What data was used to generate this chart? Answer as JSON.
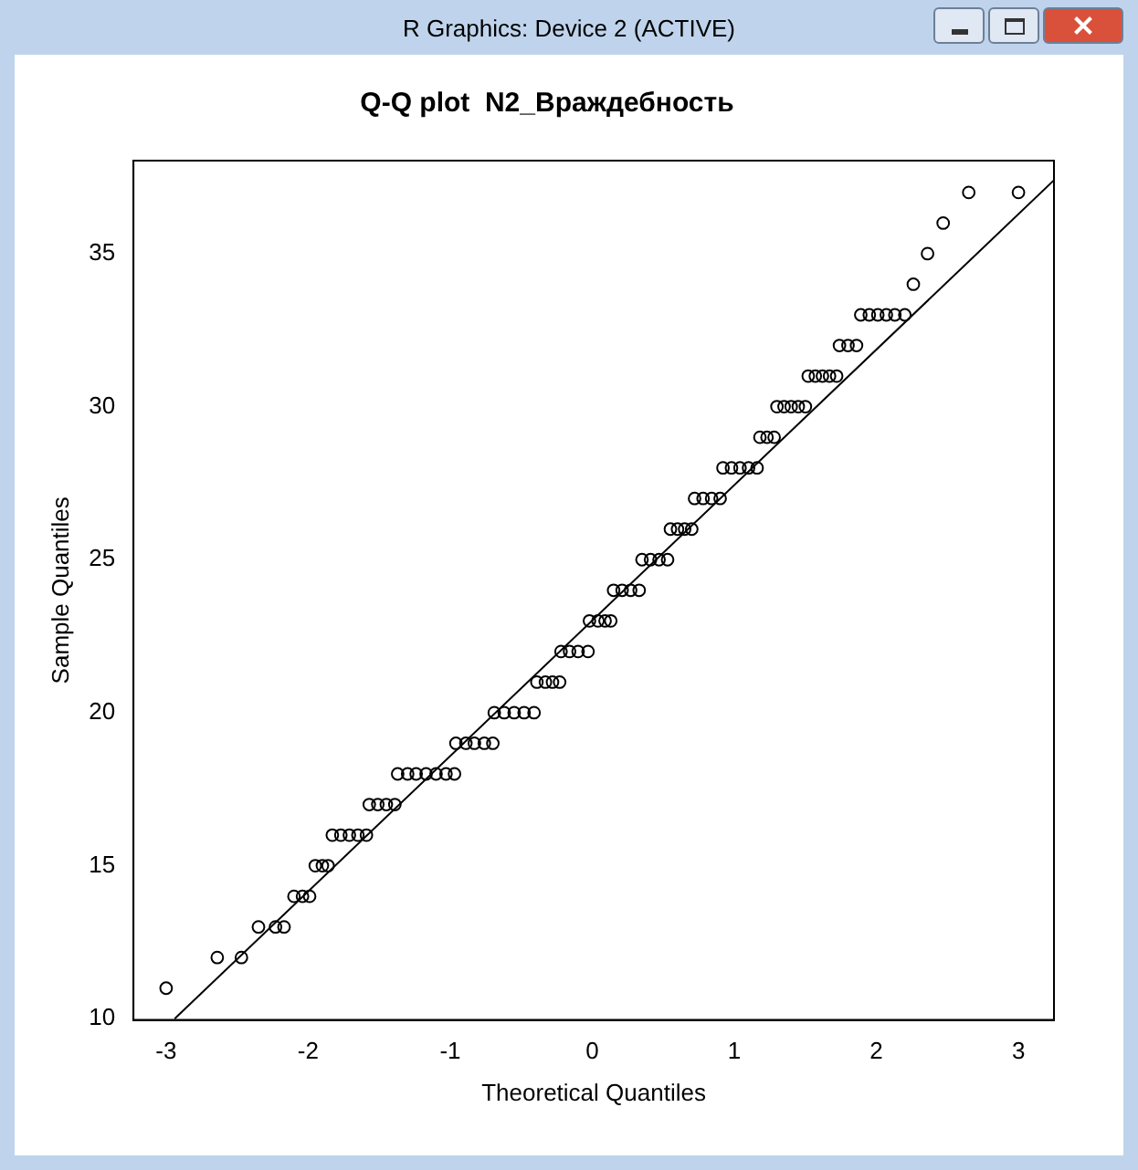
{
  "chart_data": {
    "type": "scatter",
    "title": "Q-Q plot  N2_Враждебность",
    "xlabel": "Theoretical Quantiles",
    "ylabel": "Sample Quantiles",
    "annotations": [
      "R Graphics: Device 2 (ACTIVE)"
    ],
    "xlim": [
      -3.23,
      3.25
    ],
    "ylim": [
      9.96,
      38.04
    ],
    "xticks": [
      -3,
      -2,
      -1,
      0,
      1,
      2,
      3
    ],
    "yticks": [
      10,
      15,
      20,
      25,
      30,
      35
    ],
    "grid": false,
    "legend": false,
    "marker": "circle",
    "series": [
      {
        "color": "#000000",
        "x": [
          -3.0,
          -2.64,
          -2.47,
          -2.35,
          -2.23,
          -2.17,
          -2.1,
          -2.04,
          -1.99,
          -1.95,
          -1.9,
          -1.86,
          -1.83,
          -1.77,
          -1.71,
          -1.65,
          -1.59,
          -1.57,
          -1.51,
          -1.45,
          -1.39,
          -1.37,
          -1.3,
          -1.24,
          -1.17,
          -1.1,
          -1.03,
          -0.97,
          -0.96,
          -0.89,
          -0.83,
          -0.76,
          -0.7,
          -0.69,
          -0.62,
          -0.55,
          -0.48,
          -0.41,
          -0.39,
          -0.33,
          -0.28,
          -0.23,
          -0.22,
          -0.16,
          -0.1,
          -0.03,
          -0.02,
          0.04,
          0.09,
          0.13,
          0.15,
          0.21,
          0.27,
          0.33,
          0.35,
          0.41,
          0.47,
          0.53,
          0.55,
          0.6,
          0.65,
          0.7,
          0.72,
          0.78,
          0.84,
          0.9,
          0.92,
          0.98,
          1.04,
          1.1,
          1.16,
          1.18,
          1.23,
          1.28,
          1.3,
          1.35,
          1.4,
          1.45,
          1.5,
          1.52,
          1.57,
          1.62,
          1.67,
          1.72,
          1.74,
          1.8,
          1.86,
          1.89,
          1.95,
          2.01,
          2.07,
          2.13,
          2.2,
          2.26,
          2.36,
          2.47,
          2.65,
          3.0
        ],
        "values": [
          11,
          12,
          12,
          13,
          13,
          13,
          14,
          14,
          14,
          15,
          15,
          15,
          16,
          16,
          16,
          16,
          16,
          17,
          17,
          17,
          17,
          18,
          18,
          18,
          18,
          18,
          18,
          18,
          19,
          19,
          19,
          19,
          19,
          20,
          20,
          20,
          20,
          20,
          21,
          21,
          21,
          21,
          22,
          22,
          22,
          22,
          23,
          23,
          23,
          23,
          24,
          24,
          24,
          24,
          25,
          25,
          25,
          25,
          26,
          26,
          26,
          26,
          27,
          27,
          27,
          27,
          28,
          28,
          28,
          28,
          28,
          29,
          29,
          29,
          30,
          30,
          30,
          30,
          30,
          31,
          31,
          31,
          31,
          31,
          32,
          32,
          32,
          33,
          33,
          33,
          33,
          33,
          33,
          34,
          35,
          36,
          37,
          37
        ]
      },
      {
        "type": "line",
        "color": "#000000",
        "marker": "none",
        "x": [
          -2.94,
          3.25
        ],
        "values": [
          10,
          37.4
        ]
      }
    ]
  }
}
